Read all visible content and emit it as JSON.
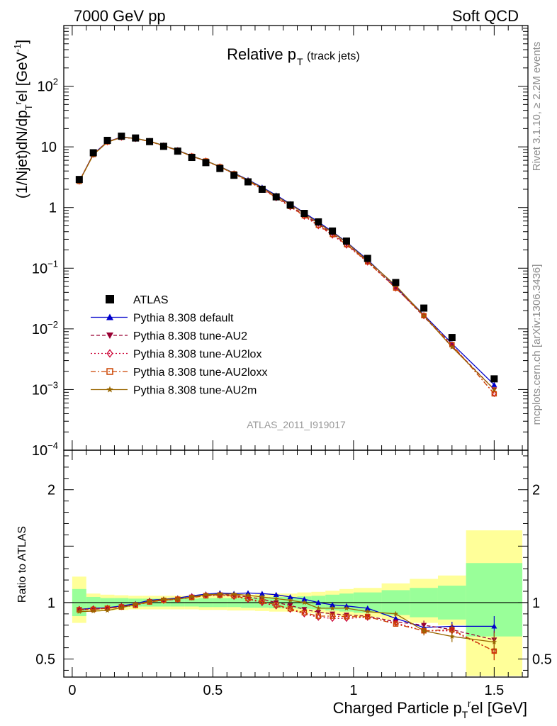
{
  "header": {
    "energy_label": "7000 GeV pp",
    "category_label": "Soft QCD"
  },
  "side_notes": {
    "rivet": "Rivet 3.1.10, ≥ 2.2M events",
    "source": "mcplots.cern.ch [arXiv:1306.3436]"
  },
  "watermark": "ATLAS_2011_I919017",
  "colors": {
    "atlas": "#000000",
    "default": "#0000cc",
    "au2": "#990033",
    "au2lox": "#cc0033",
    "au2loxx": "#cc4400",
    "au2m": "#996600",
    "band_inner": "#99ff99",
    "band_outer": "#ffff99"
  },
  "chart_data": [
    {
      "type": "line",
      "title_main": "Relative p",
      "title_sub": "T",
      "title_note": "(track jets)",
      "ylabel_parts": [
        "(1/Njet)dN/dp",
        "T",
        "r",
        "el [GeV",
        "-1",
        "]"
      ],
      "yscale": "log",
      "ylim": [
        0.0001,
        1000
      ],
      "xlim": [
        -0.03,
        1.62
      ],
      "ytick_labels": [
        {
          "value": 100,
          "base": "10",
          "exp": "2"
        },
        {
          "value": 10,
          "base": "10",
          "exp": ""
        },
        {
          "value": 1,
          "base": "1",
          "exp": ""
        },
        {
          "value": 0.1,
          "base": "10",
          "exp": "−1"
        },
        {
          "value": 0.01,
          "base": "10",
          "exp": "−2"
        },
        {
          "value": 0.001,
          "base": "10",
          "exp": "−3"
        },
        {
          "value": 0.0001,
          "base": "10",
          "exp": "−4"
        }
      ],
      "x": [
        0.025,
        0.075,
        0.125,
        0.175,
        0.225,
        0.275,
        0.325,
        0.375,
        0.425,
        0.475,
        0.525,
        0.575,
        0.625,
        0.675,
        0.725,
        0.775,
        0.825,
        0.875,
        0.925,
        0.975,
        1.05,
        1.15,
        1.25,
        1.35,
        1.5
      ],
      "series": [
        {
          "name": "ATLAS",
          "key": "atlas",
          "marker": "square",
          "values": [
            2.9,
            8.0,
            12.8,
            15.0,
            14.0,
            12.2,
            10.2,
            8.5,
            6.7,
            5.5,
            4.4,
            3.4,
            2.65,
            2.0,
            1.5,
            1.1,
            0.8,
            0.58,
            0.41,
            0.28,
            0.145,
            0.058,
            0.022,
            0.0072,
            0.0015
          ]
        },
        {
          "name": "Pythia 8.308 default",
          "key": "default",
          "marker": "triangle-up",
          "dash": "",
          "values": [
            2.7,
            7.6,
            12.2,
            14.5,
            13.8,
            12.4,
            10.5,
            8.8,
            7.1,
            5.9,
            4.75,
            3.7,
            2.87,
            2.16,
            1.6,
            1.15,
            0.82,
            0.58,
            0.4,
            0.27,
            0.138,
            0.05,
            0.017,
            0.0057,
            0.0012
          ]
        },
        {
          "name": "Pythia 8.308 tune-AU2",
          "key": "au2",
          "marker": "triangle-down",
          "dash": "5,3",
          "values": [
            2.7,
            7.5,
            12.1,
            14.4,
            13.7,
            12.3,
            10.4,
            8.7,
            7.0,
            5.85,
            4.7,
            3.62,
            2.78,
            2.06,
            1.5,
            1.07,
            0.75,
            0.53,
            0.37,
            0.25,
            0.128,
            0.048,
            0.016,
            0.0052,
            0.001
          ]
        },
        {
          "name": "Pythia 8.308 tune-AU2lox",
          "key": "au2lox",
          "marker": "diamond",
          "dash": "2,3",
          "values": [
            2.72,
            7.55,
            12.1,
            14.4,
            13.7,
            12.3,
            10.4,
            8.7,
            7.0,
            5.85,
            4.68,
            3.58,
            2.72,
            2.0,
            1.45,
            1.03,
            0.72,
            0.5,
            0.35,
            0.24,
            0.126,
            0.047,
            0.0165,
            0.0054,
            0.00086
          ]
        },
        {
          "name": "Pythia 8.308 tune-AU2loxx",
          "key": "au2loxx",
          "marker": "square-open",
          "dash": "7,3,2,3",
          "values": [
            2.71,
            7.5,
            12.1,
            14.4,
            13.6,
            12.3,
            10.4,
            8.7,
            7.0,
            5.85,
            4.68,
            3.6,
            2.74,
            2.02,
            1.47,
            1.04,
            0.73,
            0.51,
            0.36,
            0.245,
            0.127,
            0.047,
            0.0165,
            0.0055,
            0.00085
          ]
        },
        {
          "name": "Pythia 8.308 tune-AU2m",
          "key": "au2m",
          "marker": "star",
          "dash": "",
          "values": [
            2.67,
            7.4,
            11.9,
            14.4,
            13.8,
            12.4,
            10.5,
            8.75,
            7.05,
            5.9,
            4.73,
            3.65,
            2.82,
            2.1,
            1.55,
            1.12,
            0.8,
            0.55,
            0.39,
            0.265,
            0.133,
            0.052,
            0.0165,
            0.005,
            0.001
          ]
        }
      ]
    },
    {
      "type": "line",
      "ylabel": "Ratio to ATLAS",
      "xlabel_main": "Charged Particle p",
      "xlabel_sub": "T",
      "xlabel_sup": "r",
      "xlabel_tail": "el [GeV]",
      "ylim": [
        0.34,
        2.35
      ],
      "xticks": [
        0,
        0.5,
        1,
        1.5
      ],
      "xtick_labels": [
        "0",
        "0.5",
        "1",
        "1.5"
      ],
      "yticks": [
        0.5,
        1,
        2
      ],
      "ytick_labels": [
        "0.5",
        "1",
        "2"
      ],
      "bin_edges": [
        0.0,
        0.05,
        0.1,
        0.15,
        0.2,
        0.25,
        0.3,
        0.35,
        0.4,
        0.45,
        0.5,
        0.55,
        0.6,
        0.65,
        0.7,
        0.75,
        0.8,
        0.85,
        0.9,
        0.95,
        1.0,
        1.1,
        1.2,
        1.3,
        1.4,
        1.6
      ],
      "band_inner": [
        [
          0.88,
          1.12
        ],
        [
          0.95,
          1.05
        ],
        [
          0.96,
          1.04
        ],
        [
          0.96,
          1.04
        ],
        [
          0.965,
          1.035
        ],
        [
          0.965,
          1.035
        ],
        [
          0.965,
          1.035
        ],
        [
          0.965,
          1.035
        ],
        [
          0.965,
          1.035
        ],
        [
          0.96,
          1.04
        ],
        [
          0.96,
          1.04
        ],
        [
          0.96,
          1.04
        ],
        [
          0.955,
          1.045
        ],
        [
          0.955,
          1.045
        ],
        [
          0.95,
          1.05
        ],
        [
          0.95,
          1.05
        ],
        [
          0.945,
          1.055
        ],
        [
          0.94,
          1.06
        ],
        [
          0.93,
          1.07
        ],
        [
          0.92,
          1.08
        ],
        [
          0.91,
          1.09
        ],
        [
          0.89,
          1.11
        ],
        [
          0.87,
          1.13
        ],
        [
          0.85,
          1.15
        ],
        [
          0.7,
          1.35
        ]
      ],
      "band_outer": [
        [
          0.82,
          1.23
        ],
        [
          0.92,
          1.08
        ],
        [
          0.93,
          1.07
        ],
        [
          0.935,
          1.065
        ],
        [
          0.94,
          1.06
        ],
        [
          0.94,
          1.06
        ],
        [
          0.94,
          1.06
        ],
        [
          0.94,
          1.06
        ],
        [
          0.94,
          1.06
        ],
        [
          0.935,
          1.065
        ],
        [
          0.935,
          1.065
        ],
        [
          0.93,
          1.07
        ],
        [
          0.93,
          1.07
        ],
        [
          0.925,
          1.075
        ],
        [
          0.92,
          1.08
        ],
        [
          0.92,
          1.08
        ],
        [
          0.91,
          1.09
        ],
        [
          0.905,
          1.095
        ],
        [
          0.895,
          1.105
        ],
        [
          0.88,
          1.12
        ],
        [
          0.87,
          1.13
        ],
        [
          0.85,
          1.17
        ],
        [
          0.82,
          1.21
        ],
        [
          0.8,
          1.24
        ],
        [
          0.35,
          1.64
        ]
      ],
      "x": [
        0.025,
        0.075,
        0.125,
        0.175,
        0.225,
        0.275,
        0.325,
        0.375,
        0.425,
        0.475,
        0.525,
        0.575,
        0.625,
        0.675,
        0.725,
        0.775,
        0.825,
        0.875,
        0.925,
        0.975,
        1.05,
        1.15,
        1.25,
        1.35,
        1.5
      ],
      "series": [
        {
          "key": "default",
          "marker": "triangle-up",
          "dash": "",
          "values": [
            0.94,
            0.95,
            0.955,
            0.97,
            0.99,
            1.02,
            1.03,
            1.04,
            1.06,
            1.075,
            1.085,
            1.08,
            1.085,
            1.08,
            1.07,
            1.05,
            1.03,
            1.0,
            0.98,
            0.97,
            0.95,
            0.86,
            0.78,
            0.79,
            0.79
          ],
          "errors": [
            0,
            0,
            0,
            0,
            0,
            0,
            0,
            0,
            0,
            0,
            0,
            0,
            0,
            0,
            0,
            0,
            0,
            0,
            0,
            0,
            0,
            0.015,
            0.03,
            0.04,
            0.09
          ]
        },
        {
          "key": "au2",
          "marker": "triangle-down",
          "dash": "5,3",
          "values": [
            0.94,
            0.94,
            0.95,
            0.965,
            0.98,
            1.01,
            1.02,
            1.03,
            1.05,
            1.065,
            1.07,
            1.065,
            1.05,
            1.03,
            1.0,
            0.975,
            0.94,
            0.915,
            0.9,
            0.89,
            0.88,
            0.83,
            0.8,
            0.76,
            0.67
          ],
          "errors": [
            0,
            0,
            0,
            0,
            0,
            0,
            0,
            0,
            0,
            0,
            0,
            0,
            0,
            0,
            0,
            0,
            0,
            0,
            0,
            0,
            0.01,
            0.02,
            0.04,
            0.05,
            0.08
          ]
        },
        {
          "key": "au2lox",
          "marker": "diamond",
          "dash": "2,3",
          "values": [
            0.94,
            0.945,
            0.95,
            0.965,
            0.98,
            1.01,
            1.02,
            1.03,
            1.05,
            1.065,
            1.065,
            1.055,
            1.03,
            1.0,
            0.97,
            0.94,
            0.9,
            0.87,
            0.86,
            0.86,
            0.87,
            0.82,
            0.75,
            0.75,
            0.57
          ],
          "errors": [
            0,
            0,
            0,
            0,
            0,
            0,
            0,
            0,
            0,
            0,
            0,
            0,
            0,
            0,
            0,
            0,
            0,
            0,
            0,
            0,
            0.01,
            0.02,
            0.04,
            0.05,
            0.08
          ]
        },
        {
          "key": "au2loxx",
          "marker": "square-open",
          "dash": "7,3,2,3",
          "values": [
            0.935,
            0.94,
            0.95,
            0.96,
            0.975,
            1.005,
            1.02,
            1.03,
            1.045,
            1.06,
            1.065,
            1.06,
            1.035,
            1.01,
            0.98,
            0.945,
            0.91,
            0.88,
            0.88,
            0.875,
            0.875,
            0.81,
            0.75,
            0.76,
            0.57
          ],
          "errors": [
            0,
            0,
            0,
            0,
            0,
            0,
            0,
            0,
            0,
            0,
            0,
            0,
            0,
            0,
            0,
            0,
            0,
            0,
            0,
            0,
            0.01,
            0.02,
            0.04,
            0.05,
            0.08
          ]
        },
        {
          "key": "au2m",
          "marker": "star",
          "dash": "",
          "values": [
            0.92,
            0.925,
            0.93,
            0.955,
            0.985,
            1.01,
            1.03,
            1.03,
            1.05,
            1.07,
            1.075,
            1.075,
            1.065,
            1.05,
            1.035,
            1.02,
            1.0,
            0.95,
            0.95,
            0.95,
            0.92,
            0.9,
            0.75,
            0.7,
            0.65
          ],
          "errors": [
            0,
            0,
            0,
            0,
            0,
            0,
            0,
            0,
            0,
            0,
            0,
            0,
            0,
            0,
            0,
            0,
            0,
            0,
            0,
            0,
            0.01,
            0.02,
            0.04,
            0.05,
            0.08
          ]
        }
      ]
    }
  ]
}
